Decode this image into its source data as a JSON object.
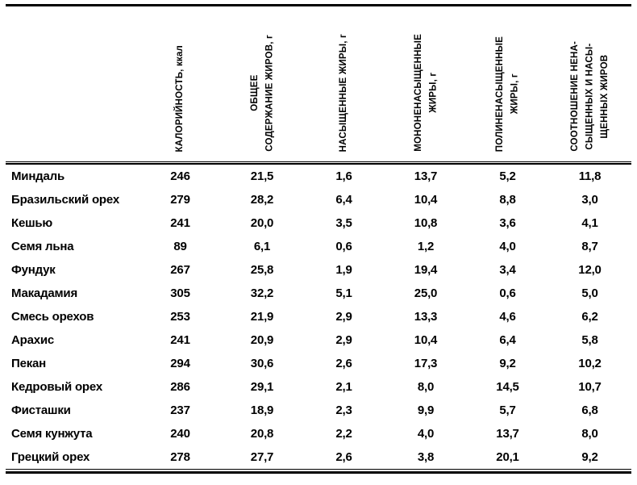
{
  "table": {
    "columns": [
      {
        "id": "food",
        "label": ""
      },
      {
        "id": "calories",
        "label": "КАЛОРИЙНОСТЬ, ккал"
      },
      {
        "id": "total-fat",
        "label": "ОБЩЕЕ\nСОДЕРЖАНИЕ ЖИРОВ, г"
      },
      {
        "id": "saturated",
        "label": "НАСЫЩЕННЫЕ ЖИРЫ, г"
      },
      {
        "id": "mono",
        "label": "МОНОНЕНАСЫЩЕННЫЕ\nЖИРЫ, г"
      },
      {
        "id": "poly",
        "label": "ПОЛИНЕНАСЫЩЕННЫЕ\nЖИРЫ, г"
      },
      {
        "id": "ratio",
        "label": "СООТНОШЕНИЕ НЕНА-\nСЫЩЕННЫХ И НАСЫ-\nЩЕННЫХ ЖИРОВ"
      }
    ],
    "rows": [
      {
        "name": "Миндаль",
        "values": [
          "246",
          "21,5",
          "1,6",
          "13,7",
          "5,2",
          "11,8"
        ]
      },
      {
        "name": "Бразильский орех",
        "values": [
          "279",
          "28,2",
          "6,4",
          "10,4",
          "8,8",
          "3,0"
        ]
      },
      {
        "name": "Кешью",
        "values": [
          "241",
          "20,0",
          "3,5",
          "10,8",
          "3,6",
          "4,1"
        ]
      },
      {
        "name": "Семя льна",
        "values": [
          "89",
          "6,1",
          "0,6",
          "1,2",
          "4,0",
          "8,7"
        ]
      },
      {
        "name": "Фундук",
        "values": [
          "267",
          "25,8",
          "1,9",
          "19,4",
          "3,4",
          "12,0"
        ]
      },
      {
        "name": "Макадамия",
        "values": [
          "305",
          "32,2",
          "5,1",
          "25,0",
          "0,6",
          "5,0"
        ]
      },
      {
        "name": "Смесь орехов",
        "values": [
          "253",
          "21,9",
          "2,9",
          "13,3",
          "4,6",
          "6,2"
        ]
      },
      {
        "name": "Арахис",
        "values": [
          "241",
          "20,9",
          "2,9",
          "10,4",
          "6,4",
          "5,8"
        ]
      },
      {
        "name": "Пекан",
        "values": [
          "294",
          "30,6",
          "2,6",
          "17,3",
          "9,2",
          "10,2"
        ]
      },
      {
        "name": "Кедровый орех",
        "values": [
          "286",
          "29,1",
          "2,1",
          "8,0",
          "14,5",
          "10,7"
        ]
      },
      {
        "name": "Фисташки",
        "values": [
          "237",
          "18,9",
          "2,3",
          "9,9",
          "5,7",
          "6,8"
        ]
      },
      {
        "name": "Семя кунжута",
        "values": [
          "240",
          "20,8",
          "2,2",
          "4,0",
          "13,7",
          "8,0"
        ]
      },
      {
        "name": "Грецкий орех",
        "values": [
          "278",
          "27,7",
          "2,6",
          "3,8",
          "20,1",
          "9,2"
        ]
      }
    ]
  },
  "colors": {
    "background": "#ffffff",
    "text": "#000000",
    "rule": "#000000"
  }
}
